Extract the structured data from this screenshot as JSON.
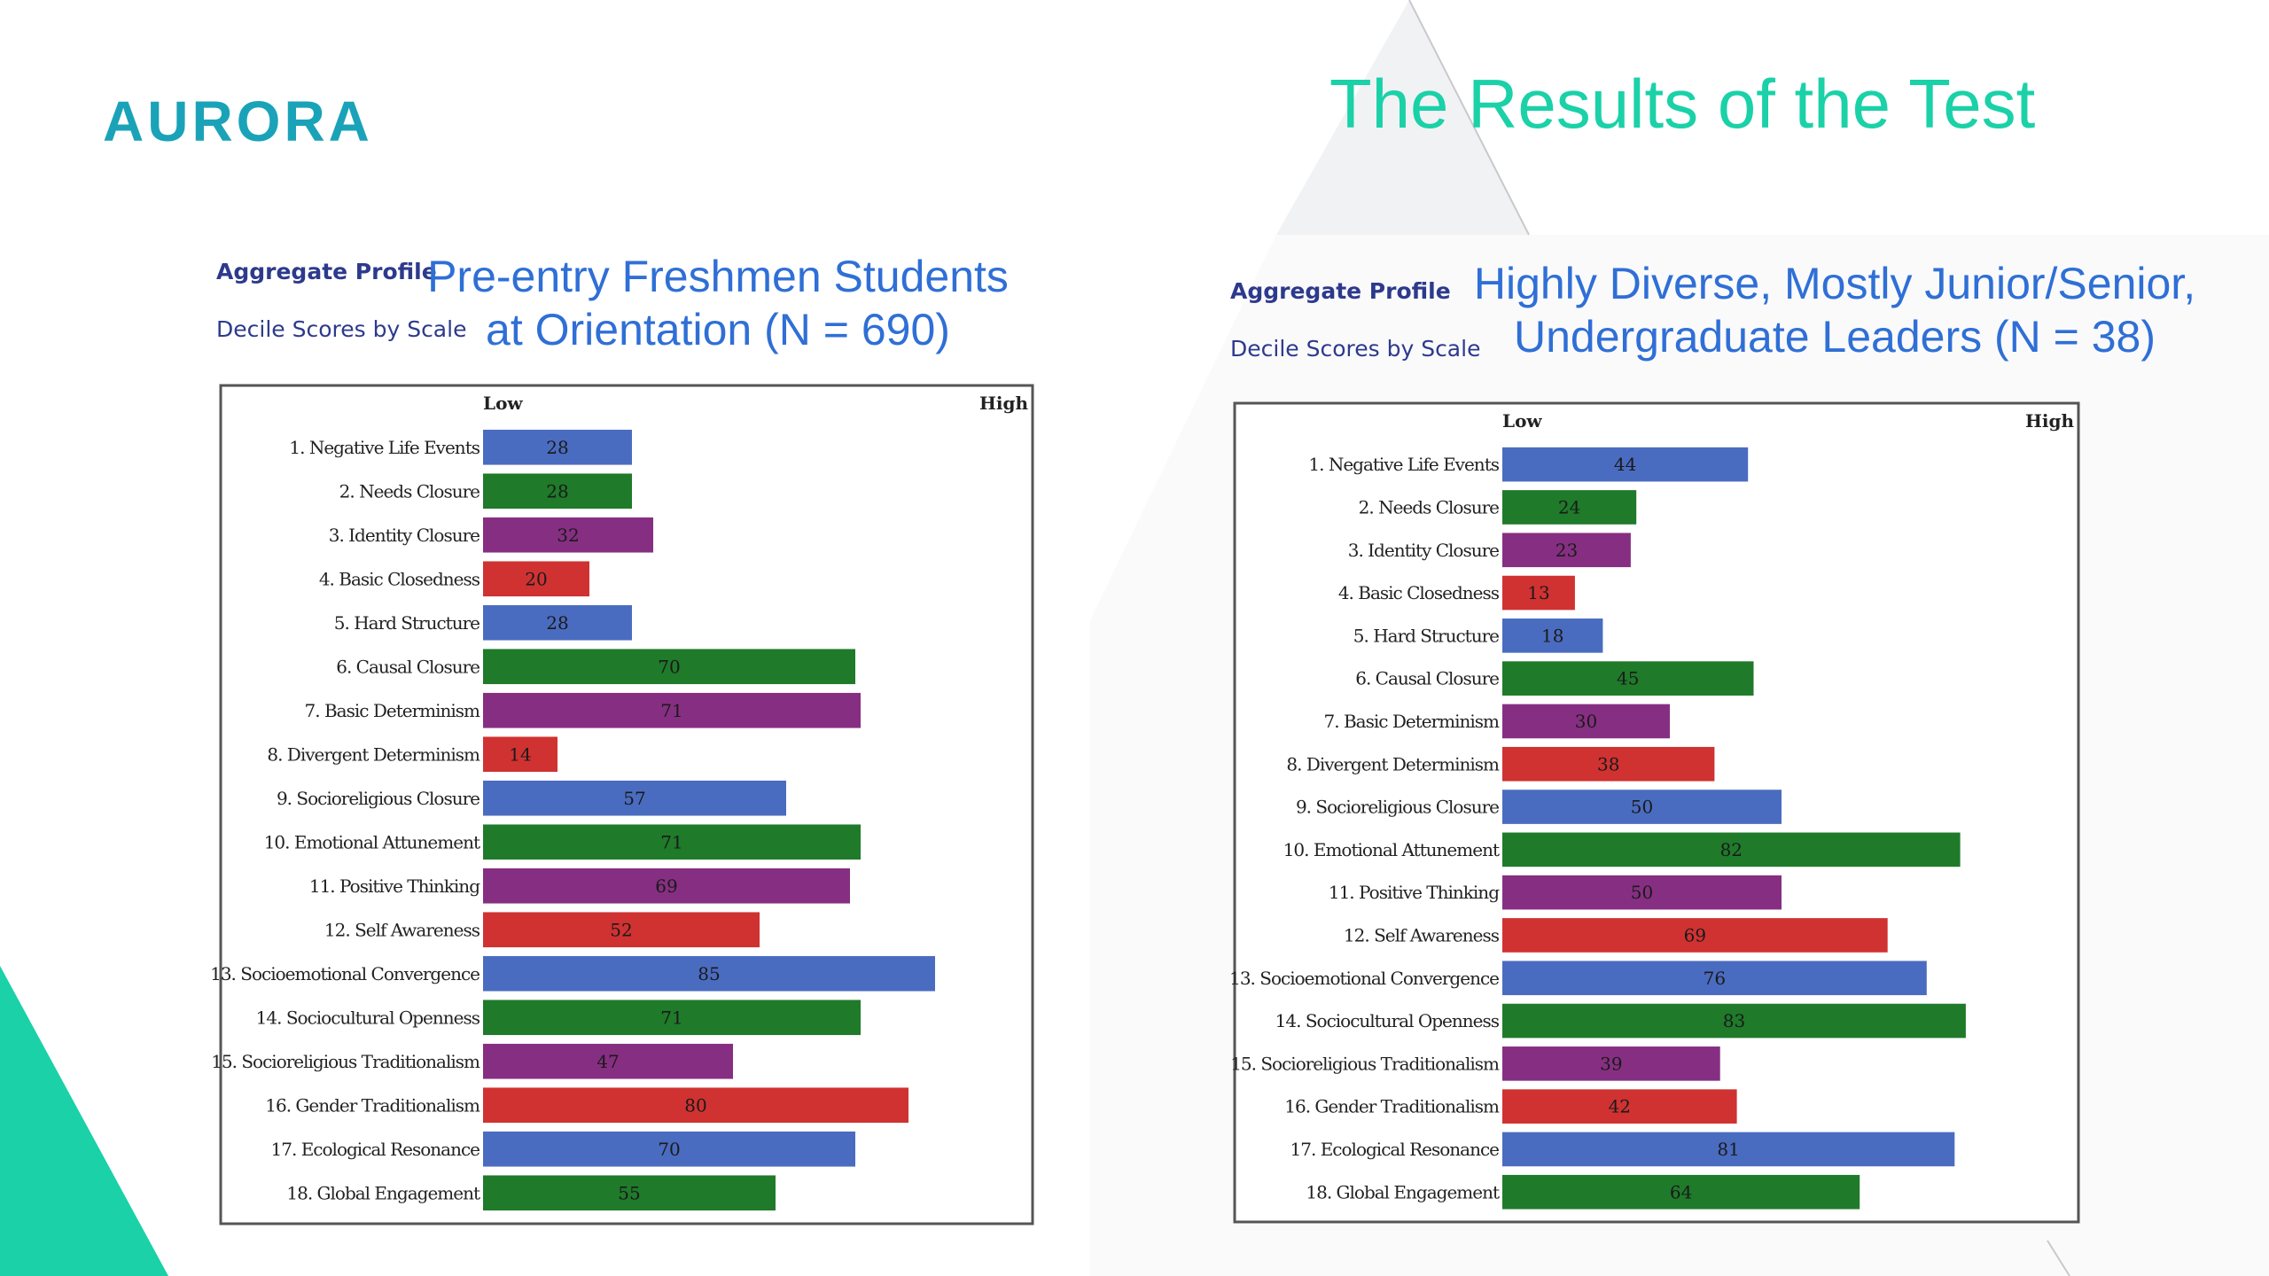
{
  "slide": {
    "logo": "AURORA",
    "title": "The Results of the Test",
    "colors": {
      "teal": "#1ad1a8",
      "logo": "#1aa3b8",
      "subtitle_blue": "#2f6fd6"
    }
  },
  "panels": [
    {
      "aggregate_label": "Aggregate Profile",
      "decile_label": "Decile Scores by Scale",
      "title_line1": "Pre-entry Freshmen Students",
      "title_line2": "at Orientation (N = 690)"
    },
    {
      "aggregate_label": "Aggregate Profile",
      "decile_label": "Decile Scores by Scale",
      "title_line1": "Highly Diverse, Mostly Junior/Senior,",
      "title_line2": "Undergraduate Leaders (N = 38)"
    }
  ],
  "chart_data": [
    {
      "type": "bar",
      "orientation": "horizontal",
      "low_label": "Low",
      "high_label": "High",
      "xlim": [
        0,
        100
      ],
      "categories": [
        "1. Negative Life Events",
        "2. Needs Closure",
        "3. Identity Closure",
        "4. Basic Closedness",
        "5. Hard Structure",
        "6. Causal Closure",
        "7. Basic Determinism",
        "8. Divergent Determinism",
        "9. Socioreligious Closure",
        "10. Emotional Attunement",
        "11. Positive Thinking",
        "12. Self Awareness",
        "13. Socioemotional Convergence",
        "14. Sociocultural Openness",
        "15. Socioreligious Traditionalism",
        "16. Gender Traditionalism",
        "17. Ecological Resonance",
        "18. Global Engagement"
      ],
      "values": [
        28,
        28,
        32,
        20,
        28,
        70,
        71,
        14,
        57,
        71,
        69,
        52,
        85,
        71,
        47,
        80,
        70,
        55
      ],
      "bar_colors": [
        "#4a6cc0",
        "#1f7a2a",
        "#862f82",
        "#d03232",
        "#4a6cc0",
        "#1f7a2a",
        "#862f82",
        "#d03232",
        "#4a6cc0",
        "#1f7a2a",
        "#862f82",
        "#d03232",
        "#4a6cc0",
        "#1f7a2a",
        "#862f82",
        "#d03232",
        "#4a6cc0",
        "#1f7a2a"
      ]
    },
    {
      "type": "bar",
      "orientation": "horizontal",
      "low_label": "Low",
      "high_label": "High",
      "xlim": [
        0,
        100
      ],
      "categories": [
        "1. Negative Life Events",
        "2. Needs Closure",
        "3. Identity Closure",
        "4. Basic Closedness",
        "5. Hard Structure",
        "6. Causal Closure",
        "7. Basic Determinism",
        "8. Divergent Determinism",
        "9. Socioreligious Closure",
        "10. Emotional Attunement",
        "11. Positive Thinking",
        "12. Self Awareness",
        "13. Socioemotional Convergence",
        "14. Sociocultural Openness",
        "15. Socioreligious Traditionalism",
        "16. Gender Traditionalism",
        "17. Ecological Resonance",
        "18. Global Engagement"
      ],
      "values": [
        44,
        24,
        23,
        13,
        18,
        45,
        30,
        38,
        50,
        82,
        50,
        69,
        76,
        83,
        39,
        42,
        81,
        64
      ],
      "bar_colors": [
        "#4a6cc0",
        "#1f7a2a",
        "#862f82",
        "#d03232",
        "#4a6cc0",
        "#1f7a2a",
        "#862f82",
        "#d03232",
        "#4a6cc0",
        "#1f7a2a",
        "#862f82",
        "#d03232",
        "#4a6cc0",
        "#1f7a2a",
        "#862f82",
        "#d03232",
        "#4a6cc0",
        "#1f7a2a"
      ]
    }
  ]
}
